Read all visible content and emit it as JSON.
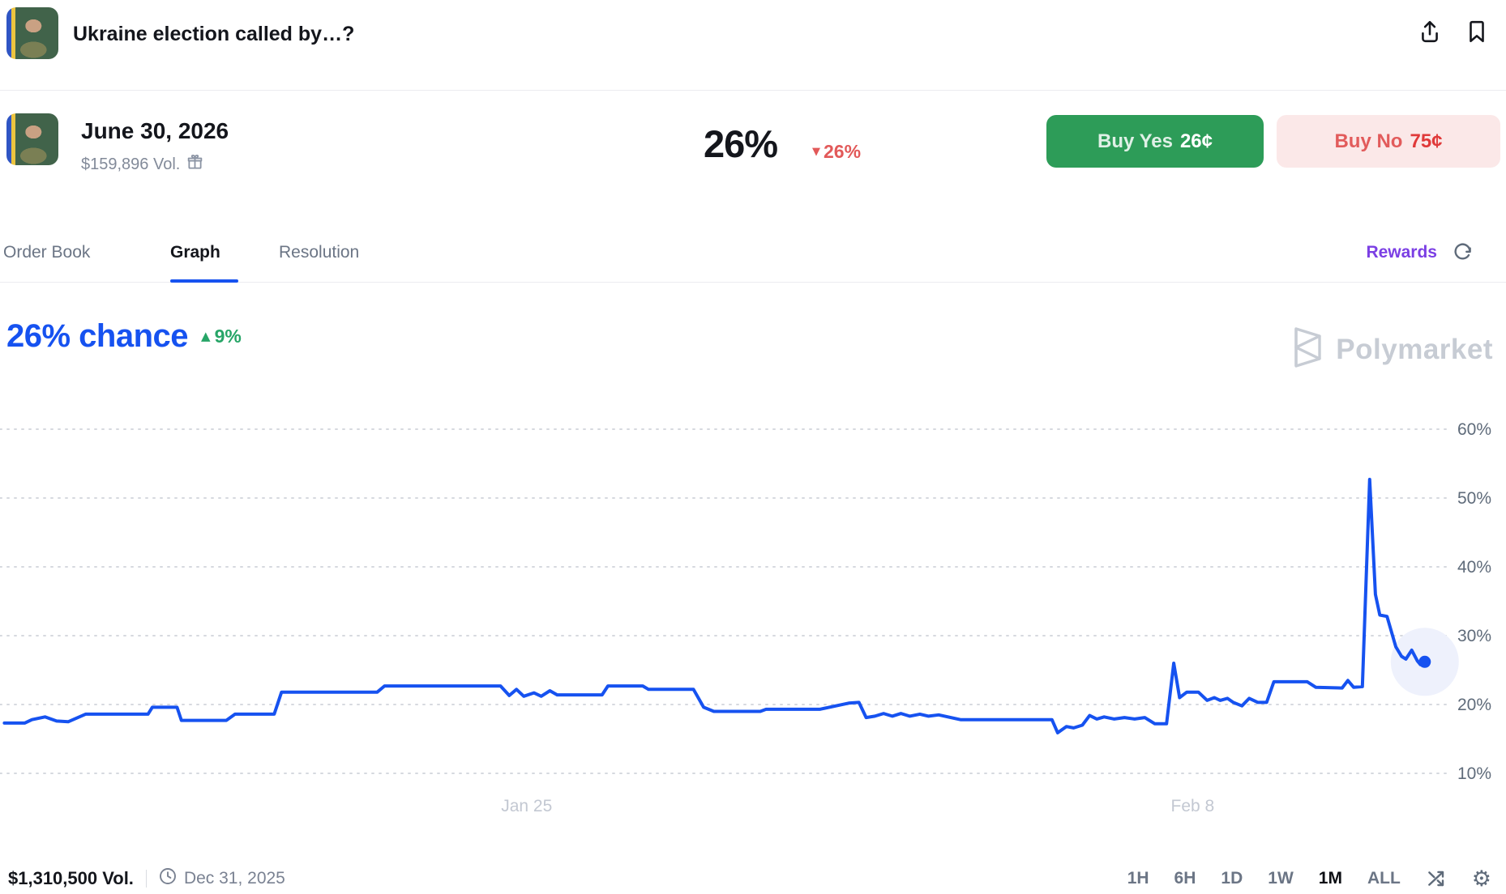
{
  "colors": {
    "accent_blue": "#1652f0",
    "buy_yes_green": "#2d9c58",
    "buy_no_pink": "#fbe8e8",
    "negative_red": "#e25959",
    "positive_green": "#27a567",
    "rewards_purple": "#7b3fe4",
    "watermark_gray": "#c7ccd4"
  },
  "icons": {
    "share": "share-icon",
    "bookmark": "bookmark-icon",
    "gift": "gift-icon",
    "refresh": "refresh-icon",
    "clock": "clock-icon",
    "compare_arrows": "cross-arrows-icon",
    "gear": "gear-icon",
    "down_triangle": "▼",
    "up_triangle": "▲"
  },
  "header": {
    "title": "Ukraine election called by…?"
  },
  "market": {
    "date_label": "June 30, 2026",
    "volume": "$159,896 Vol.",
    "price": "26%",
    "change": "26%",
    "change_direction": "down",
    "buy_yes": {
      "label": "Buy Yes",
      "price": "26¢"
    },
    "buy_no": {
      "label": "Buy No",
      "price": "75¢"
    }
  },
  "tabs": {
    "items": [
      {
        "label": "Order Book",
        "active": false
      },
      {
        "label": "Graph",
        "active": true
      },
      {
        "label": "Resolution",
        "active": false
      }
    ],
    "rewards_label": "Rewards"
  },
  "chart_header": {
    "chance": "26% chance",
    "change": "9%",
    "change_direction": "up",
    "watermark": "Polymarket"
  },
  "chart_data": {
    "type": "line",
    "title": "26% chance",
    "x_range_selected": "1M",
    "x_axis_note": "t is fraction of plot width; window ≈ Jan 14 – Feb 13",
    "xticks": [
      {
        "t": 0.363,
        "label": "Jan 25"
      },
      {
        "t": 0.822,
        "label": "Feb 8"
      }
    ],
    "yticks": [
      10,
      20,
      30,
      40,
      50,
      60
    ],
    "ylim": [
      5,
      63
    ],
    "grid": "dotted-horizontal",
    "legend": "none",
    "current_value_pct": 26,
    "series": [
      {
        "name": "Yes",
        "color": "#1652f0",
        "points": [
          [
            0.003,
            17.3
          ],
          [
            0.017,
            17.3
          ],
          [
            0.022,
            17.8
          ],
          [
            0.031,
            18.2
          ],
          [
            0.039,
            17.6
          ],
          [
            0.047,
            17.5
          ],
          [
            0.059,
            18.6
          ],
          [
            0.102,
            18.6
          ],
          [
            0.105,
            19.6
          ],
          [
            0.122,
            19.6
          ],
          [
            0.125,
            17.7
          ],
          [
            0.156,
            17.7
          ],
          [
            0.162,
            18.6
          ],
          [
            0.189,
            18.6
          ],
          [
            0.194,
            21.8
          ],
          [
            0.26,
            21.8
          ],
          [
            0.265,
            22.7
          ],
          [
            0.345,
            22.7
          ],
          [
            0.351,
            21.3
          ],
          [
            0.356,
            22.2
          ],
          [
            0.361,
            21.2
          ],
          [
            0.368,
            21.7
          ],
          [
            0.373,
            21.2
          ],
          [
            0.379,
            22.0
          ],
          [
            0.384,
            21.4
          ],
          [
            0.415,
            21.4
          ],
          [
            0.419,
            22.7
          ],
          [
            0.443,
            22.7
          ],
          [
            0.447,
            22.2
          ],
          [
            0.478,
            22.2
          ],
          [
            0.485,
            19.6
          ],
          [
            0.492,
            19.0
          ],
          [
            0.524,
            19.0
          ],
          [
            0.528,
            19.3
          ],
          [
            0.565,
            19.3
          ],
          [
            0.585,
            20.2
          ],
          [
            0.592,
            20.3
          ],
          [
            0.597,
            18.1
          ],
          [
            0.603,
            18.3
          ],
          [
            0.609,
            18.7
          ],
          [
            0.615,
            18.3
          ],
          [
            0.621,
            18.7
          ],
          [
            0.627,
            18.3
          ],
          [
            0.634,
            18.6
          ],
          [
            0.64,
            18.3
          ],
          [
            0.647,
            18.5
          ],
          [
            0.662,
            17.8
          ],
          [
            0.725,
            17.8
          ],
          [
            0.729,
            15.9
          ],
          [
            0.735,
            16.8
          ],
          [
            0.74,
            16.6
          ],
          [
            0.746,
            17.0
          ],
          [
            0.751,
            18.4
          ],
          [
            0.756,
            17.9
          ],
          [
            0.761,
            18.2
          ],
          [
            0.768,
            17.9
          ],
          [
            0.775,
            18.1
          ],
          [
            0.782,
            17.9
          ],
          [
            0.789,
            18.1
          ],
          [
            0.796,
            17.2
          ],
          [
            0.804,
            17.2
          ],
          [
            0.809,
            26.0
          ],
          [
            0.813,
            21.0
          ],
          [
            0.818,
            21.8
          ],
          [
            0.826,
            21.8
          ],
          [
            0.832,
            20.6
          ],
          [
            0.837,
            21.0
          ],
          [
            0.841,
            20.6
          ],
          [
            0.846,
            20.9
          ],
          [
            0.85,
            20.3
          ],
          [
            0.856,
            19.8
          ],
          [
            0.861,
            20.9
          ],
          [
            0.867,
            20.3
          ],
          [
            0.873,
            20.3
          ],
          [
            0.878,
            23.3
          ],
          [
            0.901,
            23.3
          ],
          [
            0.907,
            22.5
          ],
          [
            0.925,
            22.4
          ],
          [
            0.929,
            23.5
          ],
          [
            0.933,
            22.5
          ],
          [
            0.939,
            22.6
          ],
          [
            0.944,
            52.7
          ],
          [
            0.948,
            36.0
          ],
          [
            0.951,
            33.0
          ],
          [
            0.956,
            32.8
          ],
          [
            0.962,
            28.4
          ],
          [
            0.966,
            27.0
          ],
          [
            0.969,
            26.6
          ],
          [
            0.973,
            27.9
          ],
          [
            0.977,
            26.3
          ],
          [
            0.979,
            25.8
          ],
          [
            0.982,
            26.2
          ]
        ]
      }
    ]
  },
  "footer": {
    "volume": "$1,310,500 Vol.",
    "end_date": "Dec 31, 2025",
    "ranges": [
      "1H",
      "6H",
      "1D",
      "1W",
      "1M",
      "ALL"
    ],
    "active_range": "1M"
  }
}
